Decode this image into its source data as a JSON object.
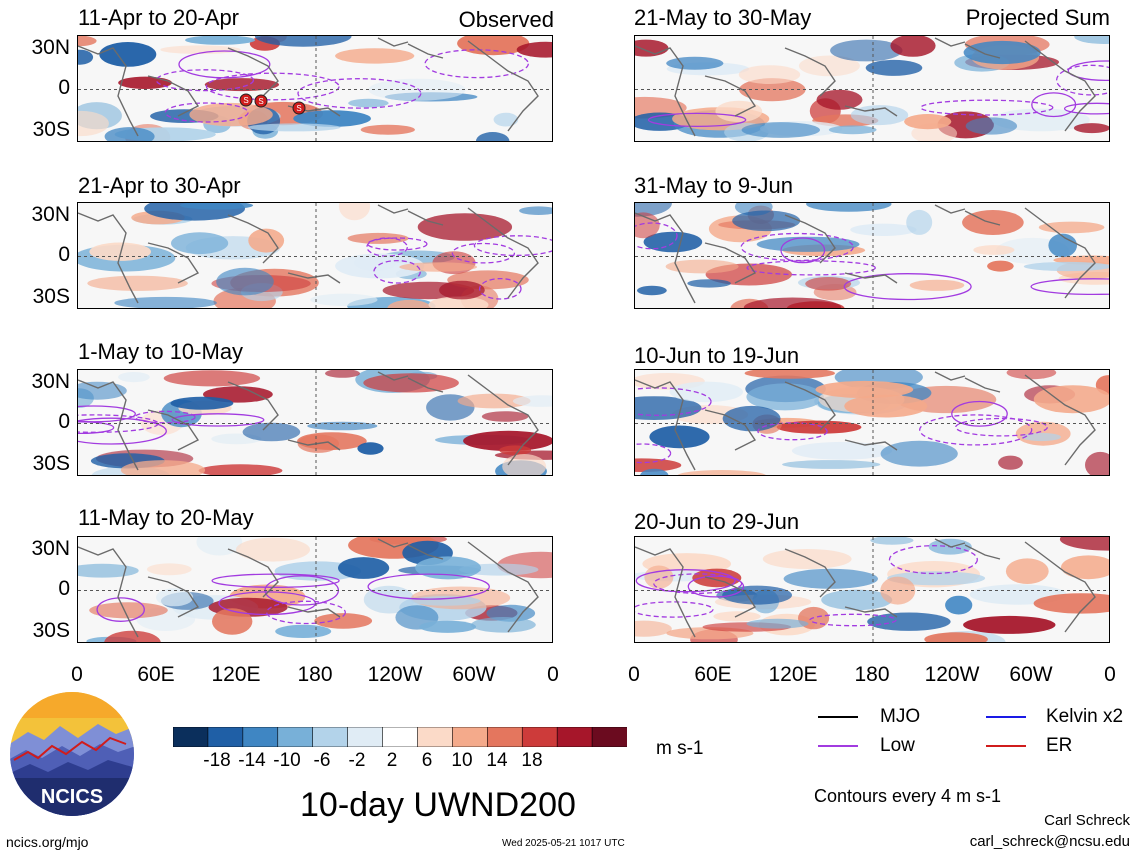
{
  "panels": [
    {
      "period": "11-Apr to 20-Apr",
      "tag": "Observed"
    },
    {
      "period": "21-May to 30-May",
      "tag": "Projected Sum"
    },
    {
      "period": "21-Apr to 30-Apr",
      "tag": ""
    },
    {
      "period": "31-May to 9-Jun",
      "tag": ""
    },
    {
      "period": "1-May to 10-May",
      "tag": ""
    },
    {
      "period": "10-Jun to 19-Jun",
      "tag": ""
    },
    {
      "period": "11-May to 20-May",
      "tag": ""
    },
    {
      "period": "20-Jun to 29-Jun",
      "tag": ""
    }
  ],
  "lat_labels": [
    "30N",
    "0",
    "30S"
  ],
  "lon_labels": [
    "0",
    "60E",
    "120E",
    "180",
    "120W",
    "60W",
    "0"
  ],
  "colorbar": {
    "labels": [
      "-18",
      "-14",
      "-10",
      "-6",
      "-2",
      "2",
      "6",
      "10",
      "14",
      "18"
    ],
    "colors": [
      "#0b2f5c",
      "#1f5fa6",
      "#3f86c3",
      "#78b0d8",
      "#b3d3ea",
      "#e0ecf5",
      "#ffffff",
      "#fbdac8",
      "#f4aa8b",
      "#e4765e",
      "#cd3b3a",
      "#a6162a",
      "#6b0b1f"
    ]
  },
  "units": "m s-1",
  "main_title": "10-day UWND200",
  "logo_text": "NCICS",
  "legend": [
    {
      "label": "MJO",
      "color": "#000000"
    },
    {
      "label": "Kelvin x2",
      "color": "#1a1ae6"
    },
    {
      "label": "Low",
      "color": "#a23be0"
    },
    {
      "label": "ER",
      "color": "#d01c1c"
    }
  ],
  "contour_note": "Contours every 4 m s-1",
  "author": "Carl Schreck",
  "email": "carl_schreck@ncsu.edu",
  "website": "ncics.org/mjo",
  "timestamp": "Wed 2025-05-21 1017 UTC",
  "storm_markers": [
    "S",
    "S",
    "S"
  ]
}
